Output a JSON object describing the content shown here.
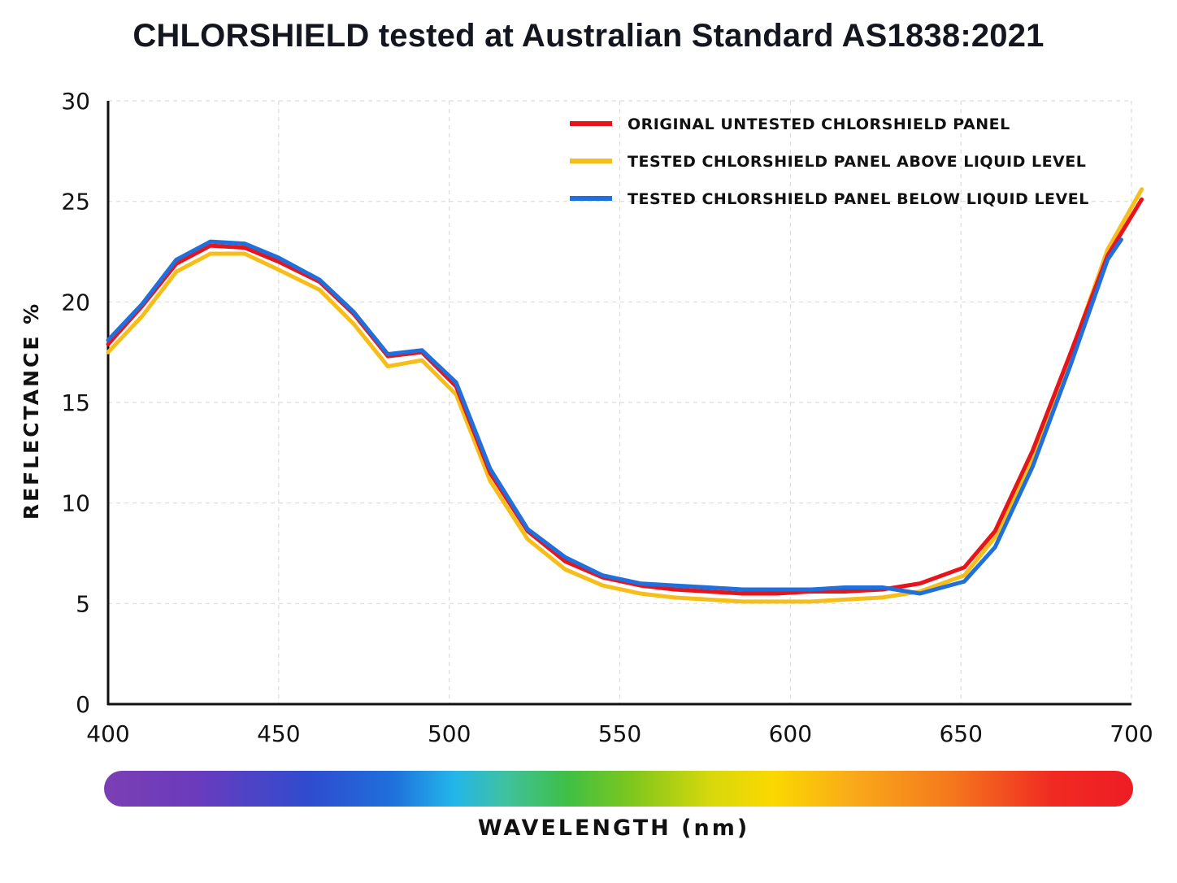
{
  "chart_data": {
    "type": "line",
    "title": "CHLORSHIELD tested at Australian Standard AS1838:2021",
    "xlabel": "WAVELENGTH (nm)",
    "ylabel": "REFLECTANCE %",
    "xlim": [
      400,
      700
    ],
    "ylim": [
      0,
      30
    ],
    "xticks": [
      400,
      450,
      500,
      550,
      600,
      650,
      700
    ],
    "yticks": [
      0,
      5,
      10,
      15,
      20,
      25,
      30
    ],
    "grid": true,
    "legend_position": "top-right",
    "spectrum_bar": true,
    "series": [
      {
        "name": "ORIGINAL UNTESTED CHLORSHIELD PANEL",
        "color": "#e8141c",
        "x": [
          400,
          410,
          420,
          430,
          440,
          450,
          462,
          472,
          482,
          492,
          502,
          512,
          523,
          534,
          545,
          556,
          566,
          576,
          586,
          596,
          606,
          616,
          627,
          638,
          651,
          660,
          671,
          682,
          693,
          703
        ],
        "y": [
          17.9,
          19.8,
          21.9,
          22.8,
          22.7,
          22.0,
          21.0,
          19.4,
          17.3,
          17.5,
          15.8,
          11.5,
          8.6,
          7.1,
          6.3,
          5.9,
          5.7,
          5.6,
          5.5,
          5.5,
          5.6,
          5.6,
          5.7,
          6.0,
          6.8,
          8.6,
          12.6,
          17.4,
          22.3,
          25.1
        ]
      },
      {
        "name": "TESTED CHLORSHIELD PANEL ABOVE LIQUID LEVEL",
        "color": "#f6be1a",
        "x": [
          400,
          410,
          420,
          430,
          440,
          450,
          462,
          472,
          482,
          492,
          502,
          512,
          523,
          534,
          545,
          556,
          566,
          576,
          586,
          596,
          606,
          616,
          627,
          638,
          651,
          660,
          671,
          682,
          693,
          703
        ],
        "y": [
          17.5,
          19.3,
          21.5,
          22.4,
          22.4,
          21.6,
          20.6,
          18.9,
          16.8,
          17.1,
          15.4,
          11.1,
          8.2,
          6.7,
          5.9,
          5.5,
          5.3,
          5.2,
          5.1,
          5.1,
          5.1,
          5.2,
          5.3,
          5.6,
          6.4,
          8.3,
          12.2,
          17.3,
          22.6,
          25.6
        ]
      },
      {
        "name": "TESTED CHLORSHIELD PANEL BELOW LIQUID LEVEL",
        "color": "#1f6fdc",
        "x": [
          400,
          410,
          420,
          430,
          440,
          450,
          462,
          472,
          482,
          492,
          502,
          512,
          523,
          534,
          545,
          556,
          566,
          576,
          586,
          596,
          606,
          616,
          627,
          638,
          651,
          660,
          671,
          682,
          693,
          697
        ],
        "y": [
          18.1,
          19.9,
          22.1,
          23.0,
          22.9,
          22.2,
          21.1,
          19.5,
          17.4,
          17.6,
          16.0,
          11.7,
          8.7,
          7.3,
          6.4,
          6.0,
          5.9,
          5.8,
          5.7,
          5.7,
          5.7,
          5.8,
          5.8,
          5.5,
          6.1,
          7.8,
          11.8,
          16.8,
          22.1,
          23.1
        ]
      }
    ]
  }
}
